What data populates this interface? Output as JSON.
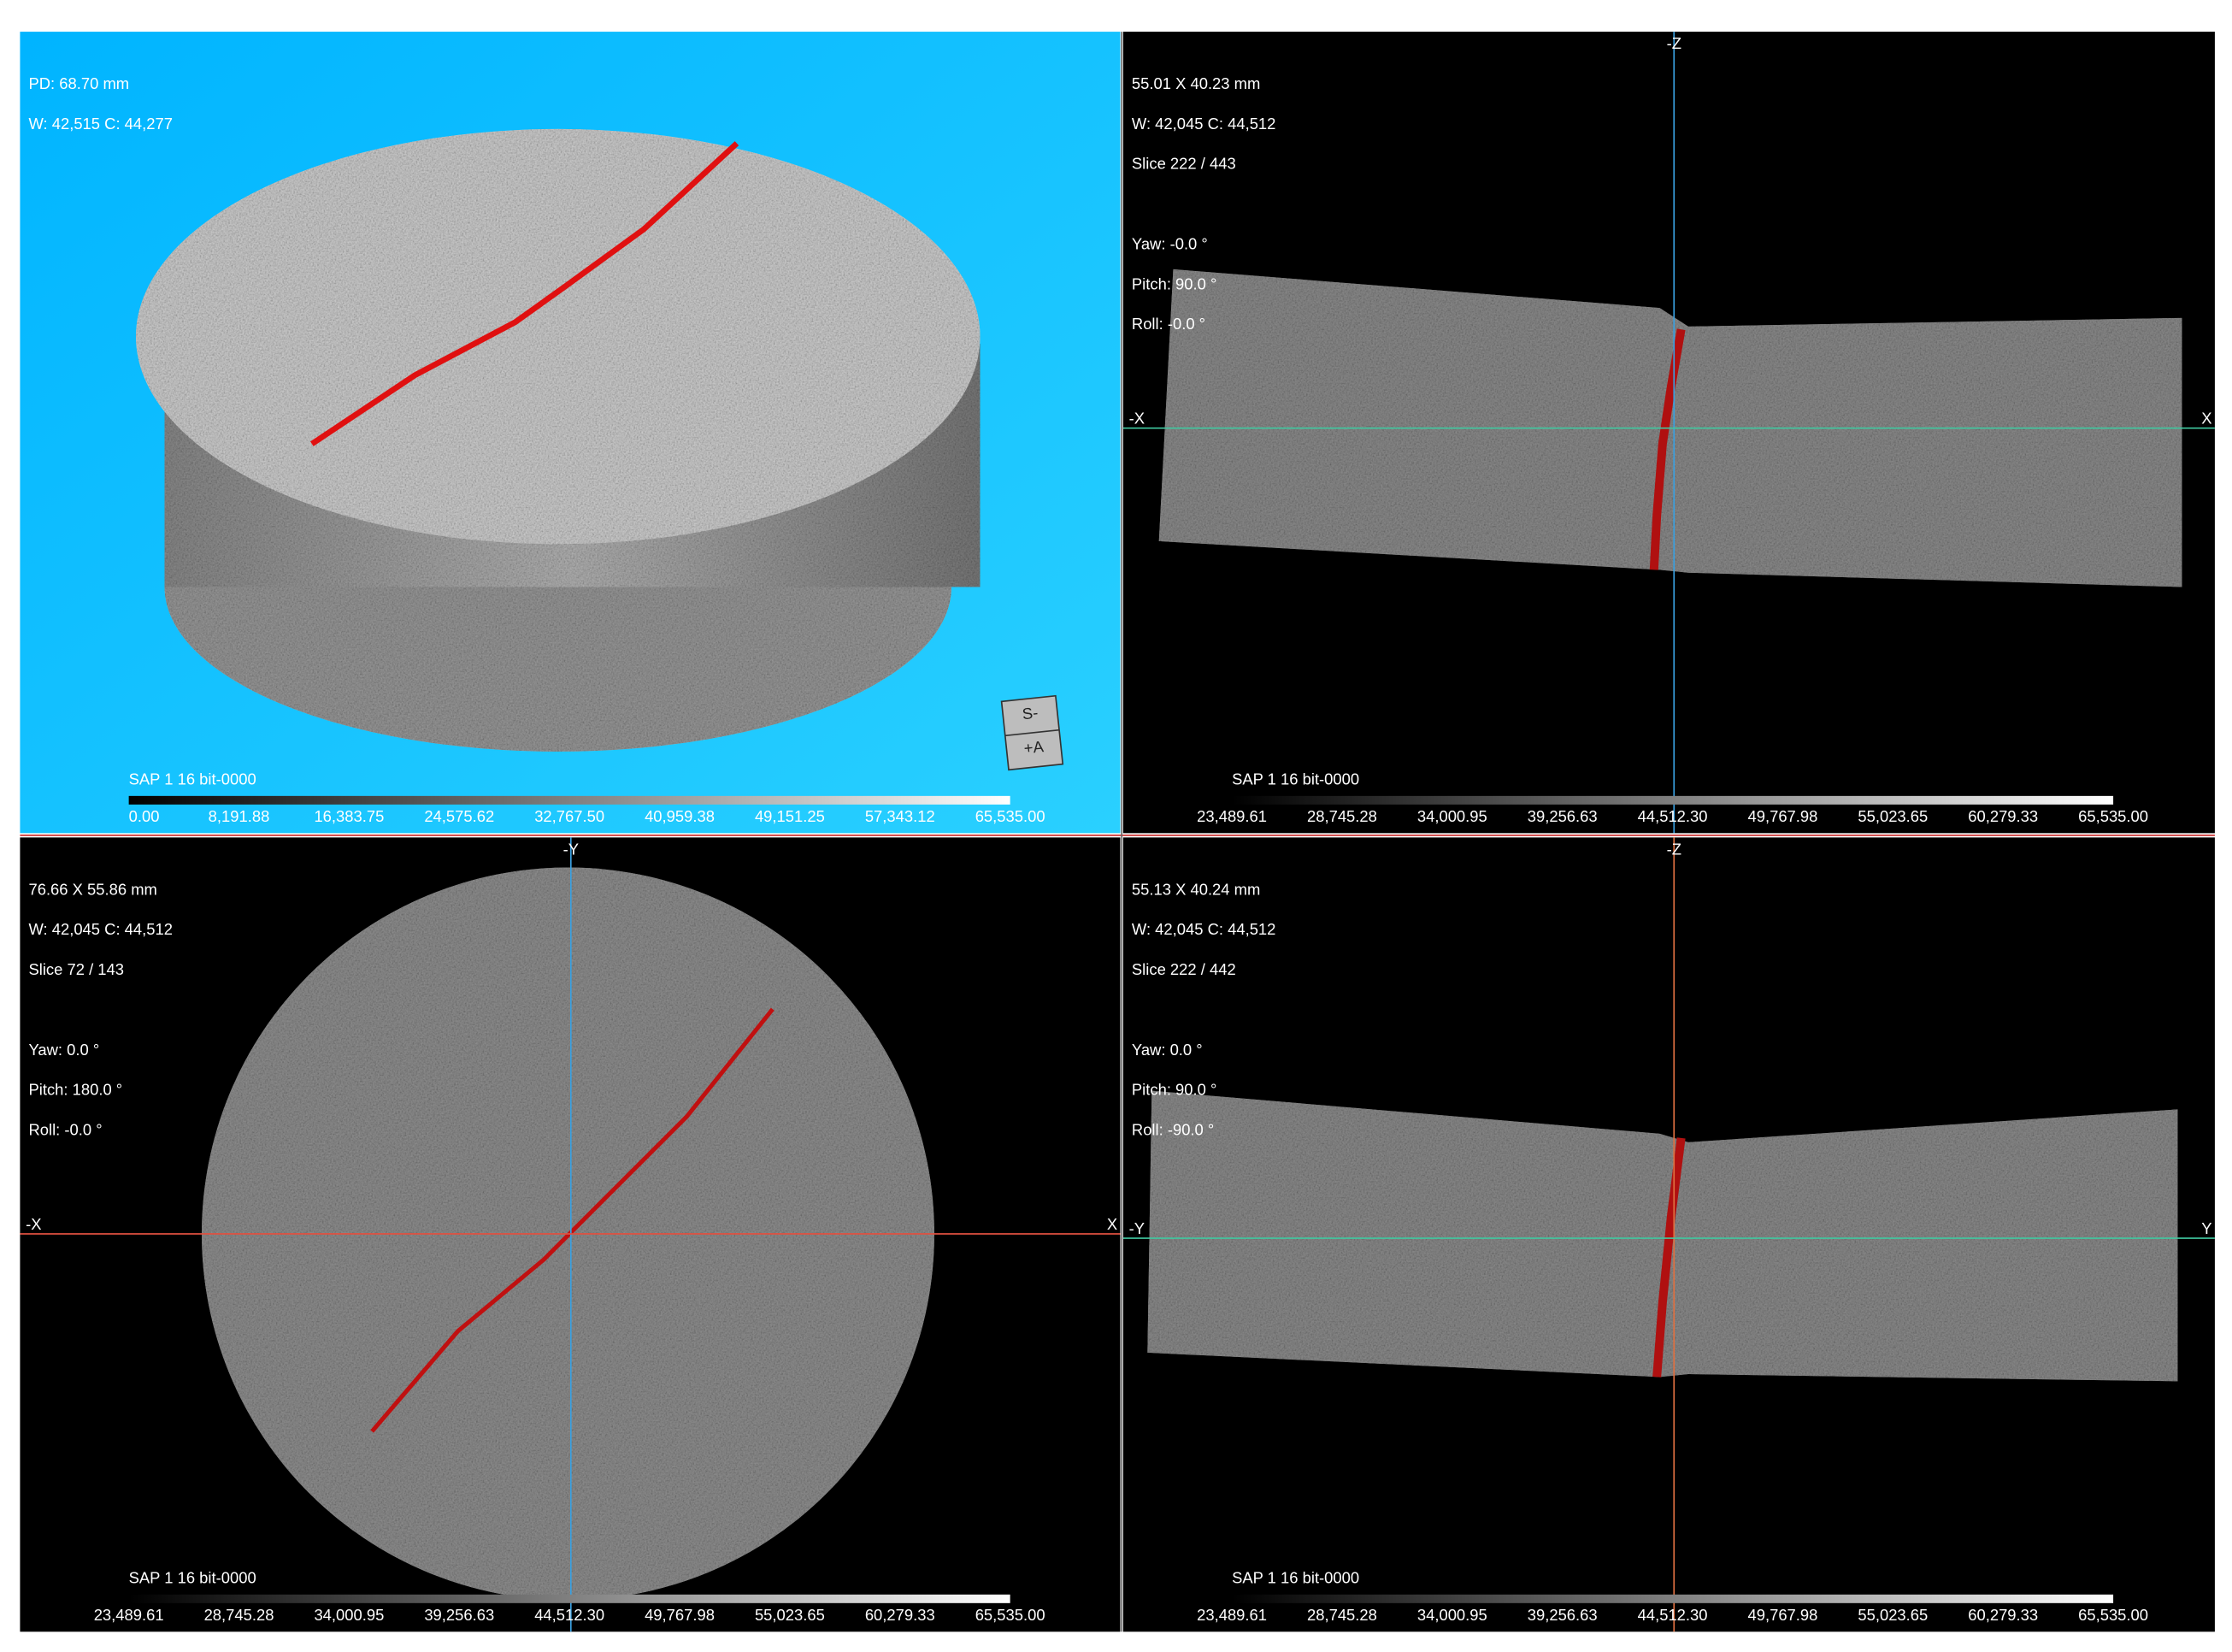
{
  "panels": [
    {
      "info_lines": [
        "PD: 68.70 mm",
        "W: 42,515 C: 44,277"
      ],
      "axes": {},
      "colorbar": {
        "title": "SAP 1 16 bit-0000",
        "labels": [
          "0.00",
          "8,191.88",
          "16,383.75",
          "24,575.62",
          "32,767.50",
          "40,959.38",
          "49,151.25",
          "57,343.12",
          "65,535.00"
        ]
      },
      "cube_labels": [
        "S-",
        "+A"
      ]
    },
    {
      "info_lines": [
        "55.01 X 40.23 mm",
        "W: 42,045 C: 44,512",
        "Slice 222 / 443",
        "",
        "Yaw: -0.0 °",
        "Pitch: 90.0 °",
        "Roll: -0.0 °"
      ],
      "axes": {
        "top": "-Z",
        "left": "-X",
        "right": "X"
      },
      "colorbar": {
        "title": "SAP 1 16 bit-0000",
        "labels": [
          "23,489.61",
          "28,745.28",
          "34,000.95",
          "39,256.63",
          "44,512.30",
          "49,767.98",
          "55,023.65",
          "60,279.33",
          "65,535.00"
        ]
      }
    },
    {
      "info_lines": [
        "76.66 X 55.86 mm",
        "W: 42,045 C: 44,512",
        "Slice 72 / 143",
        "",
        "Yaw: 0.0 °",
        "Pitch: 180.0 °",
        "Roll: -0.0 °"
      ],
      "axes": {
        "top": "-Y",
        "left": "-X",
        "right": "X"
      },
      "colorbar": {
        "title": "SAP 1 16 bit-0000",
        "labels": [
          "23,489.61",
          "28,745.28",
          "34,000.95",
          "39,256.63",
          "44,512.30",
          "49,767.98",
          "55,023.65",
          "60,279.33",
          "65,535.00"
        ]
      }
    },
    {
      "info_lines": [
        "55.13 X 40.24 mm",
        "W: 42,045 C: 44,512",
        "Slice 222 / 442",
        "",
        "Yaw: 0.0 °",
        "Pitch: 90.0 °",
        "Roll: -90.0 °"
      ],
      "axes": {
        "top": "-Z",
        "left": "-Y",
        "right": "Y"
      },
      "colorbar": {
        "title": "SAP 1 16 bit-0000",
        "labels": [
          "23,489.61",
          "28,745.28",
          "34,000.95",
          "39,256.63",
          "44,512.30",
          "49,767.98",
          "55,023.65",
          "60,279.33",
          "65,535.00"
        ]
      }
    }
  ]
}
